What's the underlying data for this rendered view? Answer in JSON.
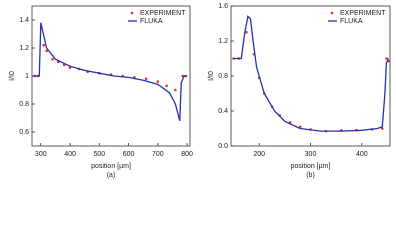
{
  "chart_data": [
    {
      "type": "line",
      "ylabel": "I/I0",
      "xlabel": "position [µm]",
      "panel_label": "(a)",
      "xlim": [
        270,
        810
      ],
      "xticks": [
        300,
        400,
        500,
        600,
        700,
        800
      ],
      "ylim": [
        0.5,
        1.5
      ],
      "yticks": [
        0.6,
        0.8,
        1.0,
        1.2,
        1.4
      ],
      "legend": "upper right",
      "series": [
        {
          "name": "EXPERIMENT",
          "color": "#e0302a",
          "style": "markers",
          "x": [
            280,
            290,
            310,
            320,
            340,
            360,
            380,
            400,
            430,
            460,
            500,
            540,
            580,
            620,
            660,
            700,
            730,
            760,
            785,
            795
          ],
          "values": [
            1.0,
            1.0,
            1.22,
            1.18,
            1.12,
            1.1,
            1.08,
            1.06,
            1.05,
            1.03,
            1.02,
            1.01,
            1.0,
            0.99,
            0.98,
            0.96,
            0.93,
            0.9,
            1.0,
            1.0
          ]
        },
        {
          "name": "FLUKA",
          "color": "#2233aa",
          "style": "line",
          "x": [
            270,
            295,
            300,
            320,
            350,
            400,
            450,
            500,
            550,
            600,
            650,
            700,
            740,
            760,
            775,
            780,
            790,
            800
          ],
          "values": [
            1.0,
            1.0,
            1.38,
            1.2,
            1.12,
            1.07,
            1.04,
            1.02,
            1.0,
            0.99,
            0.97,
            0.94,
            0.88,
            0.8,
            0.68,
            0.95,
            1.0,
            1.0
          ]
        }
      ]
    },
    {
      "type": "line",
      "ylabel": "I/I0",
      "xlabel": "position [µm]",
      "panel_label": "(b)",
      "xlim": [
        145,
        455
      ],
      "xticks": [
        200,
        300,
        400
      ],
      "ylim": [
        0,
        1.6
      ],
      "yticks": [
        {
          "value": 0,
          "label": "0.0"
        },
        0.4,
        0.8,
        1.2,
        1.6
      ],
      "legend": "upper right",
      "series": [
        {
          "name": "EXPERIMENT",
          "color": "#e0302a",
          "style": "markers",
          "x": [
            150,
            160,
            175,
            190,
            200,
            210,
            225,
            240,
            260,
            280,
            300,
            330,
            360,
            390,
            420,
            440,
            448,
            452
          ],
          "values": [
            1.0,
            1.0,
            1.3,
            1.05,
            0.78,
            0.6,
            0.45,
            0.35,
            0.27,
            0.22,
            0.19,
            0.17,
            0.18,
            0.18,
            0.19,
            0.2,
            1.0,
            0.97
          ]
        },
        {
          "name": "FLUKA",
          "color": "#2233aa",
          "style": "line",
          "x": [
            150,
            165,
            172,
            178,
            183,
            188,
            195,
            210,
            230,
            250,
            280,
            320,
            360,
            400,
            430,
            440,
            445,
            448,
            452
          ],
          "values": [
            1.0,
            1.0,
            1.3,
            1.48,
            1.45,
            1.2,
            0.9,
            0.6,
            0.4,
            0.28,
            0.2,
            0.17,
            0.17,
            0.18,
            0.2,
            0.22,
            0.6,
            0.95,
            1.0
          ]
        }
      ]
    }
  ]
}
